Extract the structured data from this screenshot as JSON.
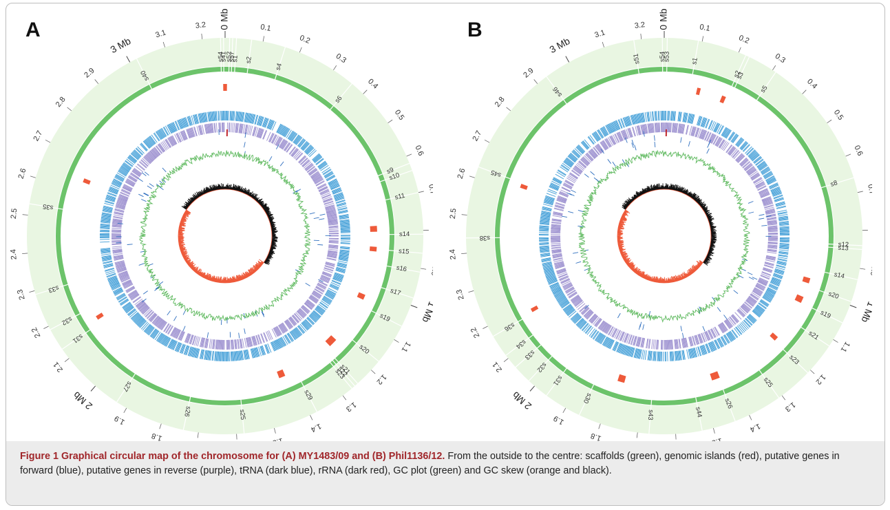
{
  "panels": [
    {
      "id": "a",
      "letter": "A",
      "total_mb": 3.26,
      "tick_labels": [
        "0.1",
        "0.2",
        "0.3",
        "0.4",
        "0.5",
        "0.6",
        "0.7",
        "0.8",
        "0.9",
        "1.1",
        "1.2",
        "1.3",
        "1.4",
        "1.5",
        "1.6",
        "1.7",
        "1.8",
        "1.9",
        "2.1",
        "2.2",
        "2.3",
        "2.4",
        "2.5",
        "2.6",
        "2.7",
        "2.8",
        "2.9",
        "3.1",
        "3.2"
      ],
      "mb_labels": [
        {
          "mb": 0,
          "text": "0 Mb"
        },
        {
          "mb": 1,
          "text": "1 Mb"
        },
        {
          "mb": 2,
          "text": "2 Mb"
        },
        {
          "mb": 3,
          "text": "3 Mb"
        }
      ],
      "scaffolds": [
        {
          "name": "s1",
          "mb": 0.03
        },
        {
          "name": "s57",
          "mb": 0.02
        },
        {
          "name": "s52",
          "mb": 0.012
        },
        {
          "name": "s41",
          "mb": 3.256
        },
        {
          "name": "s54",
          "mb": 3.248
        },
        {
          "name": "s2",
          "mb": 0.07
        },
        {
          "name": "s4",
          "mb": 0.16
        },
        {
          "name": "s6",
          "mb": 0.36
        },
        {
          "name": "s9",
          "mb": 0.62
        },
        {
          "name": "s10",
          "mb": 0.64
        },
        {
          "name": "s11",
          "mb": 0.7
        },
        {
          "name": "s14",
          "mb": 0.81
        },
        {
          "name": "s15",
          "mb": 0.86
        },
        {
          "name": "s16",
          "mb": 0.91
        },
        {
          "name": "s17",
          "mb": 0.98
        },
        {
          "name": "s19",
          "mb": 1.06
        },
        {
          "name": "s20",
          "mb": 1.17
        },
        {
          "name": "s21",
          "mb": 1.25
        },
        {
          "name": "s22",
          "mb": 1.26
        },
        {
          "name": "s23",
          "mb": 1.27
        },
        {
          "name": "s29",
          "mb": 1.38
        },
        {
          "name": "s25",
          "mb": 1.58
        },
        {
          "name": "s26",
          "mb": 1.74
        },
        {
          "name": "s27",
          "mb": 1.93
        },
        {
          "name": "s31",
          "mb": 2.13
        },
        {
          "name": "s32",
          "mb": 2.19
        },
        {
          "name": "s33",
          "mb": 2.29
        },
        {
          "name": "s35",
          "mb": 2.53
        },
        {
          "name": "s40",
          "mb": 3.02
        }
      ],
      "islands": [
        {
          "mb": 0.0,
          "size": 0.013
        },
        {
          "mb": 0.79,
          "size": 0.02
        },
        {
          "mb": 0.86,
          "size": 0.016
        },
        {
          "mb": 1.03,
          "size": 0.018
        },
        {
          "mb": 1.22,
          "size": 0.03
        },
        {
          "mb": 1.43,
          "size": 0.022
        },
        {
          "mb": 2.15,
          "size": 0.014
        },
        {
          "mb": 2.64,
          "size": 0.014
        }
      ],
      "seed": 7
    },
    {
      "id": "b",
      "letter": "B",
      "total_mb": 3.26,
      "tick_labels": [
        "0.1",
        "0.2",
        "0.3",
        "0.4",
        "0.5",
        "0.6",
        "0.7",
        "0.8",
        "0.9",
        "1.1",
        "1.2",
        "1.3",
        "1.4",
        "1.5",
        "1.6",
        "1.7",
        "1.8",
        "1.9",
        "2.1",
        "2.2",
        "2.3",
        "2.4",
        "2.5",
        "2.6",
        "2.7",
        "2.8",
        "2.9",
        "3.1",
        "3.2"
      ],
      "mb_labels": [
        {
          "mb": 0,
          "text": "0 Mb"
        },
        {
          "mb": 1,
          "text": "1 Mb"
        },
        {
          "mb": 2,
          "text": "2 Mb"
        },
        {
          "mb": 3,
          "text": "3 Mb"
        }
      ],
      "scaffolds": [
        {
          "name": "s53",
          "mb": 0.008
        },
        {
          "name": "s54",
          "mb": 3.255
        },
        {
          "name": "s51",
          "mb": 3.18
        },
        {
          "name": "s1",
          "mb": 0.09
        },
        {
          "name": "s2",
          "mb": 0.22
        },
        {
          "name": "s3",
          "mb": 0.23
        },
        {
          "name": "s5",
          "mb": 0.31
        },
        {
          "name": "s8",
          "mb": 0.66
        },
        {
          "name": "s12",
          "mb": 0.84
        },
        {
          "name": "s13",
          "mb": 0.85
        },
        {
          "name": "s14",
          "mb": 0.93
        },
        {
          "name": "s20",
          "mb": 0.99
        },
        {
          "name": "s19",
          "mb": 1.05
        },
        {
          "name": "s21",
          "mb": 1.12
        },
        {
          "name": "s23",
          "mb": 1.21
        },
        {
          "name": "s25",
          "mb": 1.31
        },
        {
          "name": "s26",
          "mb": 1.44
        },
        {
          "name": "s44",
          "mb": 1.53
        },
        {
          "name": "s43",
          "mb": 1.67
        },
        {
          "name": "s30",
          "mb": 1.86
        },
        {
          "name": "s31",
          "mb": 1.96
        },
        {
          "name": "s32",
          "mb": 2.02
        },
        {
          "name": "s33",
          "mb": 2.07
        },
        {
          "name": "s34",
          "mb": 2.11
        },
        {
          "name": "s36",
          "mb": 2.17
        },
        {
          "name": "s38",
          "mb": 2.44
        },
        {
          "name": "s45",
          "mb": 2.63
        },
        {
          "name": "s46",
          "mb": 2.93
        }
      ],
      "islands": [
        {
          "mb": 0.12,
          "size": 0.012
        },
        {
          "mb": 0.21,
          "size": 0.014
        },
        {
          "mb": 0.97,
          "size": 0.018
        },
        {
          "mb": 1.04,
          "size": 0.022
        },
        {
          "mb": 1.2,
          "size": 0.016
        },
        {
          "mb": 1.45,
          "size": 0.028
        },
        {
          "mb": 1.78,
          "size": 0.024
        },
        {
          "mb": 2.18,
          "size": 0.013
        },
        {
          "mb": 2.62,
          "size": 0.014
        }
      ],
      "seed": 13
    }
  ],
  "caption": {
    "title": "Figure 1 Graphical circular map of the chromosome for (A) MY1483/09 and (B) Phil1136/12.",
    "body": " From the outside to the centre: scaffolds (green), genomic islands (red), putative genes in forward (blue), putative genes in reverse (purple), tRNA (dark blue), rRNA (dark red), GC plot (green) and GC skew (orange and black)."
  },
  "colors": {
    "scaffold_band": "#e9f6e2",
    "scaffold_ring": "#6cc36a",
    "island": "#ee5a3a",
    "gene_forward": "#3b9bd6",
    "gene_reverse": "#9b8fcf",
    "trna": "#2f6fbf",
    "rrna": "#c0262d",
    "gc_plot": "#5cb85c",
    "gc_skew_pos": "#111111",
    "gc_skew_neg": "#ee5a3a"
  }
}
